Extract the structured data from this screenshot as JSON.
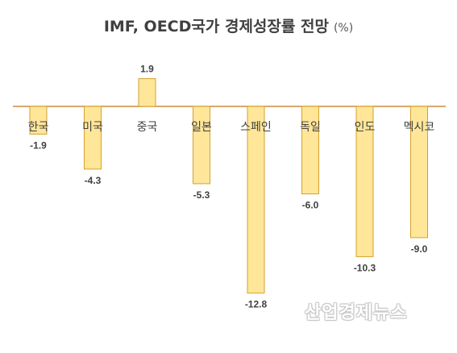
{
  "header": {
    "title": "IMF, OECD국가 경제성장률 전망",
    "unit": "(%)"
  },
  "watermark": "산업경제뉴스",
  "colors": {
    "bar_fill": "#FFE699",
    "bar_stroke": "#D6A22E",
    "axis_line": "#D08A3A",
    "text": "#404040"
  },
  "chart_data": {
    "type": "bar",
    "title": "IMF, OECD국가 경제성장률 전망",
    "unit": "(%)",
    "categories": [
      "한국",
      "미국",
      "중국",
      "일본",
      "스페인",
      "독일",
      "인도",
      "멕시코"
    ],
    "values": [
      -1.9,
      -4.3,
      1.9,
      -5.3,
      -12.8,
      -6.0,
      -10.3,
      -9.0
    ],
    "value_labels": [
      "-1.9",
      "-4.3",
      "1.9",
      "-5.3",
      "-12.8",
      "-6.0",
      "-10.3",
      "-9.0"
    ],
    "ylim": [
      -12.8,
      1.9
    ],
    "grid": false,
    "legend": "none"
  }
}
